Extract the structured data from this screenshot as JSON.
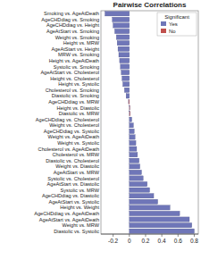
{
  "chart_data": {
    "type": "bar",
    "orientation": "horizontal",
    "title": "Pairwise Correlations",
    "categories": [
      "Smoking vs. AgeAtDeath",
      "AgeCHDdiag vs. Smoking",
      "AgeCHDdiag vs. Height",
      "AgeAtStart vs. Smoking",
      "Weight vs. Smoking",
      "Height vs. MRW",
      "AgeAtStart vs. Height",
      "MRW vs. Smoking",
      "Height vs. AgeAtDeath",
      "Systolic vs. Smoking",
      "AgeAtStart vs. Cholesterol",
      "Height vs. Cholesterol",
      "Height vs. Systolic",
      "Cholesterol vs. Smoking",
      "Diastolic vs. Smoking",
      "AgeCHDdiag vs. MRW",
      "Height vs. Diastolic",
      "Diastolic vs. MRW",
      "AgeCHDdiag vs. Cholesterol",
      "Weight vs. Cholesterol",
      "AgeCHDdiag vs. Systolic",
      "Weight vs. AgeAtDeath",
      "Weight vs. Systolic",
      "Cholesterol vs. AgeAtDeath",
      "Cholesterol vs. MRW",
      "Diastolic vs. Cholesterol",
      "Weight vs. Diastolic",
      "AgeAtStart vs. MRW",
      "Systolic vs. Cholesterol",
      "AgeAtStart vs. Diastolic",
      "Systolic vs. MRW",
      "AgeCHDdiag vs. Diastolic",
      "AgeAtStart vs. Systolic",
      "Height vs. Weight",
      "AgeCHDdiag vs. AgeAtDeath",
      "AgeAtStart vs. AgeAtDeath",
      "Weight vs. MRW",
      "Diastolic vs. Systolic"
    ],
    "series": [
      {
        "name": "Yes",
        "color": "#6f76b8",
        "values": [
          -0.3,
          -0.21,
          -0.2,
          -0.18,
          -0.16,
          -0.15,
          -0.14,
          -0.13,
          -0.12,
          -0.11,
          -0.1,
          -0.09,
          -0.08,
          -0.06,
          -0.04,
          null,
          null,
          null,
          0.03,
          0.05,
          0.06,
          0.07,
          0.08,
          0.09,
          0.1,
          0.12,
          0.13,
          0.15,
          0.17,
          0.22,
          0.25,
          0.3,
          0.35,
          0.5,
          0.62,
          0.74,
          0.77,
          0.8
        ]
      },
      {
        "name": "No",
        "color": "#c0504d",
        "values": [
          null,
          null,
          null,
          null,
          null,
          null,
          null,
          null,
          null,
          null,
          null,
          null,
          null,
          null,
          null,
          -0.01,
          0.005,
          0.01,
          null,
          null,
          null,
          null,
          null,
          null,
          null,
          null,
          null,
          null,
          null,
          null,
          null,
          null,
          null,
          null,
          null,
          null,
          null,
          null
        ]
      }
    ],
    "legend_title": "Significant",
    "legend": "top-right",
    "xlim": [
      -0.35,
      0.85
    ],
    "xticks": [
      -0.2,
      0,
      0.2,
      0.4,
      0.6,
      0.8
    ],
    "grid": false
  }
}
